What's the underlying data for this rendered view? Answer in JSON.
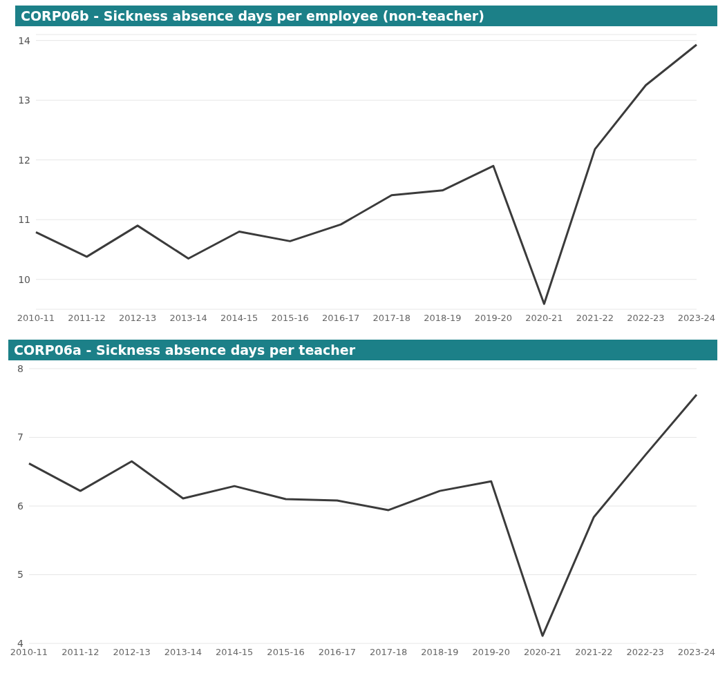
{
  "chart_data": [
    {
      "type": "line",
      "title": "CORP06b - Sickness absence days per employee (non-teacher)",
      "categories": [
        "2010-11",
        "2011-12",
        "2012-13",
        "2013-14",
        "2014-15",
        "2015-16",
        "2016-17",
        "2017-18",
        "2018-19",
        "2019-20",
        "2020-21",
        "2021-22",
        "2022-23",
        "2023-24"
      ],
      "series": [
        {
          "color": "#3b3b3b",
          "values": [
            10.79,
            10.38,
            10.9,
            10.35,
            10.8,
            10.64,
            10.92,
            11.41,
            11.49,
            11.9,
            9.59,
            12.18,
            13.25,
            13.93
          ]
        }
      ],
      "ylim": [
        9.5,
        14.1
      ],
      "yticks": [
        10,
        11,
        12,
        13,
        14
      ],
      "grid": "y"
    },
    {
      "type": "line",
      "title": "CORP06a - Sickness absence days per teacher",
      "categories": [
        "2010-11",
        "2011-12",
        "2012-13",
        "2013-14",
        "2014-15",
        "2015-16",
        "2016-17",
        "2017-18",
        "2018-19",
        "2019-20",
        "2020-21",
        "2021-22",
        "2022-23",
        "2023-24"
      ],
      "series": [
        {
          "color": "#3b3b3b",
          "values": [
            6.62,
            6.22,
            6.65,
            6.11,
            6.29,
            6.1,
            6.08,
            5.94,
            6.22,
            6.36,
            4.11,
            5.84,
            6.74,
            7.62
          ]
        }
      ],
      "ylim": [
        4,
        8
      ],
      "yticks": [
        4,
        5,
        6,
        7,
        8
      ],
      "grid": "y"
    }
  ]
}
